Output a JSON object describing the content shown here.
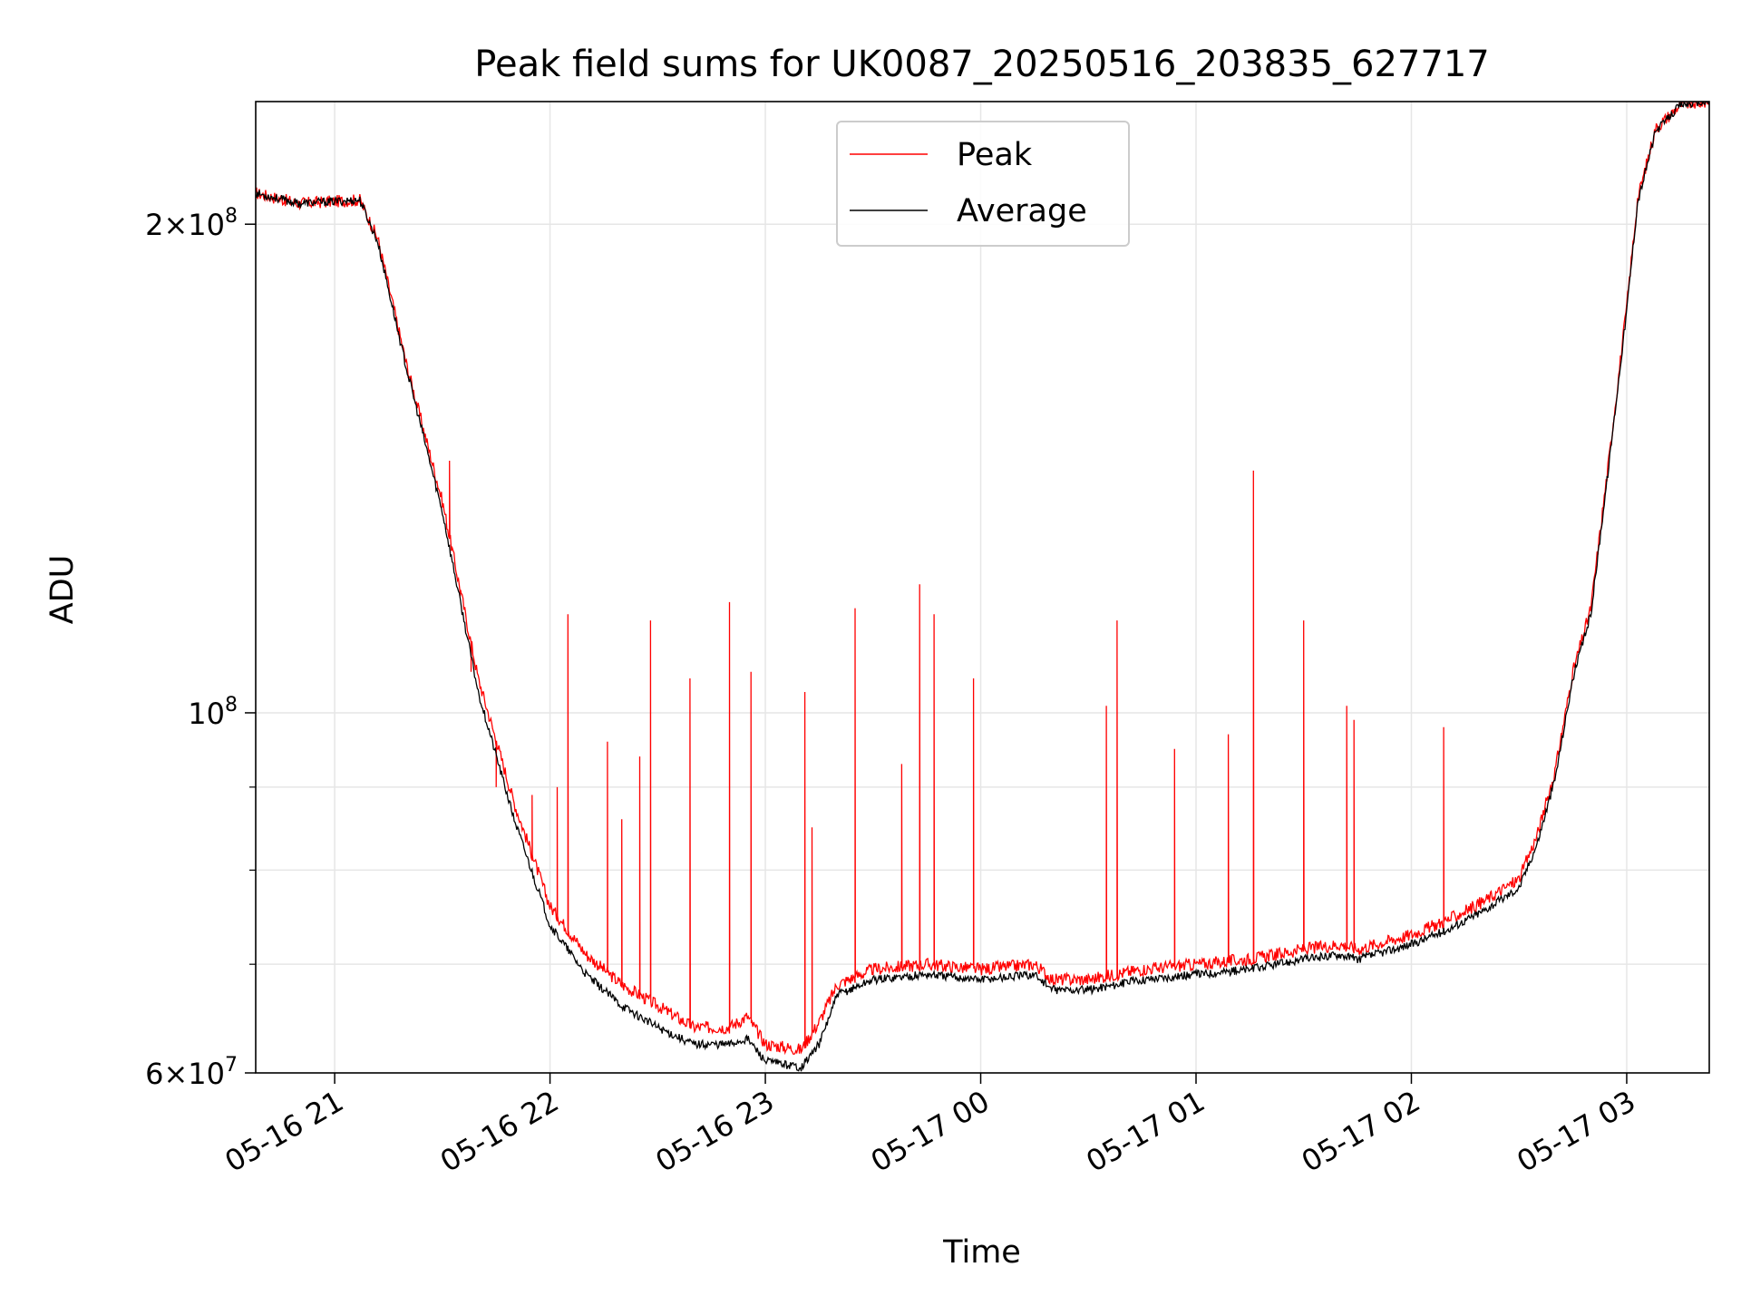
{
  "chart_data": {
    "type": "line",
    "title": "Peak field sums for UK0087_20250516_203835_627717",
    "xlabel": "Time",
    "ylabel": "ADU",
    "yscale": "log",
    "ylim": [
      60000000,
      238000000
    ],
    "xlim": [
      "2025-05-16T20:38",
      "2025-05-17T03:23"
    ],
    "grid": true,
    "legend_position": "top-center",
    "x_ticks": [
      {
        "t": "2025-05-16T21:00",
        "label": "05-16 21"
      },
      {
        "t": "2025-05-16T22:00",
        "label": "05-16 22"
      },
      {
        "t": "2025-05-16T23:00",
        "label": "05-16 23"
      },
      {
        "t": "2025-05-17T00:00",
        "label": "05-17 00"
      },
      {
        "t": "2025-05-17T01:00",
        "label": "05-17 01"
      },
      {
        "t": "2025-05-17T02:00",
        "label": "05-17 02"
      },
      {
        "t": "2025-05-17T03:00",
        "label": "05-17 03"
      }
    ],
    "y_ticks": [
      {
        "v": 60000000,
        "mantissa": "6",
        "exp": "7"
      },
      {
        "v": 100000000,
        "mantissa": "",
        "exp": "8"
      },
      {
        "v": 200000000,
        "mantissa": "2",
        "exp": "8"
      }
    ],
    "y_minor_ticks": [
      70000000,
      80000000,
      90000000
    ],
    "series": [
      {
        "name": "Peak",
        "color": "#ff0000",
        "points": [
          [
            "2025-05-16T20:38",
            209000000
          ],
          [
            "2025-05-16T20:50",
            206000000
          ],
          [
            "2025-05-16T21:07",
            207000000
          ],
          [
            "2025-05-16T21:12",
            196000000
          ],
          [
            "2025-05-16T21:20",
            164000000
          ],
          [
            "2025-05-16T21:30",
            135000000
          ],
          [
            "2025-05-16T21:40",
            105000000
          ],
          [
            "2025-05-16T21:50",
            88000000
          ],
          [
            "2025-05-16T22:00",
            76000000
          ],
          [
            "2025-05-16T22:10",
            71000000
          ],
          [
            "2025-05-16T22:20",
            68000000
          ],
          [
            "2025-05-16T22:30",
            66000000
          ],
          [
            "2025-05-16T22:40",
            64000000
          ],
          [
            "2025-05-16T22:50",
            64000000
          ],
          [
            "2025-05-16T22:55",
            65000000
          ],
          [
            "2025-05-16T23:00",
            62500000
          ],
          [
            "2025-05-16T23:10",
            62000000
          ],
          [
            "2025-05-16T23:15",
            64500000
          ],
          [
            "2025-05-16T23:20",
            68000000
          ],
          [
            "2025-05-16T23:30",
            69500000
          ],
          [
            "2025-05-16T23:45",
            70000000
          ],
          [
            "2025-05-17T00:00",
            69500000
          ],
          [
            "2025-05-17T00:15",
            70000000
          ],
          [
            "2025-05-17T00:20",
            68500000
          ],
          [
            "2025-05-17T00:30",
            68500000
          ],
          [
            "2025-05-17T00:45",
            69500000
          ],
          [
            "2025-05-17T01:00",
            70000000
          ],
          [
            "2025-05-17T01:15",
            70500000
          ],
          [
            "2025-05-17T01:30",
            71500000
          ],
          [
            "2025-05-17T01:40",
            72000000
          ],
          [
            "2025-05-17T01:45",
            71500000
          ],
          [
            "2025-05-17T02:00",
            73000000
          ],
          [
            "2025-05-17T02:10",
            74500000
          ],
          [
            "2025-05-17T02:20",
            76500000
          ],
          [
            "2025-05-17T02:30",
            79000000
          ],
          [
            "2025-05-17T02:35",
            84000000
          ],
          [
            "2025-05-17T02:40",
            92000000
          ],
          [
            "2025-05-17T02:45",
            106000000
          ],
          [
            "2025-05-17T02:50",
            116000000
          ],
          [
            "2025-05-17T02:55",
            143000000
          ],
          [
            "2025-05-17T03:00",
            178000000
          ],
          [
            "2025-05-17T03:03",
            207000000
          ],
          [
            "2025-05-17T03:08",
            229000000
          ],
          [
            "2025-05-17T03:15",
            237000000
          ],
          [
            "2025-05-17T03:23",
            238000000
          ]
        ],
        "spikes": [
          [
            "2025-05-16T21:32",
            143000000
          ],
          [
            "2025-05-16T21:35",
            118000000
          ],
          [
            "2025-05-16T21:38",
            106000000
          ],
          [
            "2025-05-16T21:45",
            90000000
          ],
          [
            "2025-05-16T21:55",
            89000000
          ],
          [
            "2025-05-16T22:02",
            90000000
          ],
          [
            "2025-05-16T22:05",
            115000000
          ],
          [
            "2025-05-16T22:16",
            96000000
          ],
          [
            "2025-05-16T22:20",
            86000000
          ],
          [
            "2025-05-16T22:25",
            94000000
          ],
          [
            "2025-05-16T22:28",
            114000000
          ],
          [
            "2025-05-16T22:39",
            105000000
          ],
          [
            "2025-05-16T22:50",
            117000000
          ],
          [
            "2025-05-16T22:56",
            106000000
          ],
          [
            "2025-05-16T23:11",
            103000000
          ],
          [
            "2025-05-16T23:13",
            85000000
          ],
          [
            "2025-05-16T23:25",
            116000000
          ],
          [
            "2025-05-16T23:38",
            93000000
          ],
          [
            "2025-05-16T23:43",
            120000000
          ],
          [
            "2025-05-16T23:47",
            115000000
          ],
          [
            "2025-05-16T23:58",
            105000000
          ],
          [
            "2025-05-17T00:35",
            101000000
          ],
          [
            "2025-05-17T00:38",
            114000000
          ],
          [
            "2025-05-17T00:54",
            95000000
          ],
          [
            "2025-05-17T01:09",
            97000000
          ],
          [
            "2025-05-17T01:16",
            141000000
          ],
          [
            "2025-05-17T01:30",
            114000000
          ],
          [
            "2025-05-17T01:42",
            101000000
          ],
          [
            "2025-05-17T01:44",
            99000000
          ],
          [
            "2025-05-17T02:09",
            98000000
          ]
        ]
      },
      {
        "name": "Average",
        "color": "#000000",
        "points": [
          [
            "2025-05-16T20:38",
            209000000
          ],
          [
            "2025-05-16T20:50",
            206000000
          ],
          [
            "2025-05-16T21:07",
            207000000
          ],
          [
            "2025-05-16T21:12",
            195000000
          ],
          [
            "2025-05-16T21:20",
            163000000
          ],
          [
            "2025-05-16T21:30",
            133000000
          ],
          [
            "2025-05-16T21:40",
            103000000
          ],
          [
            "2025-05-16T21:50",
            86000000
          ],
          [
            "2025-05-16T22:00",
            74000000
          ],
          [
            "2025-05-16T22:10",
            69000000
          ],
          [
            "2025-05-16T22:20",
            66000000
          ],
          [
            "2025-05-16T22:30",
            64000000
          ],
          [
            "2025-05-16T22:40",
            62500000
          ],
          [
            "2025-05-16T22:50",
            62500000
          ],
          [
            "2025-05-16T22:55",
            63000000
          ],
          [
            "2025-05-16T23:00",
            61000000
          ],
          [
            "2025-05-16T23:10",
            60500000
          ],
          [
            "2025-05-16T23:15",
            62500000
          ],
          [
            "2025-05-16T23:20",
            67000000
          ],
          [
            "2025-05-16T23:30",
            68500000
          ],
          [
            "2025-05-16T23:45",
            69000000
          ],
          [
            "2025-05-17T00:00",
            68500000
          ],
          [
            "2025-05-17T00:15",
            69000000
          ],
          [
            "2025-05-17T00:20",
            67500000
          ],
          [
            "2025-05-17T00:30",
            67500000
          ],
          [
            "2025-05-17T00:45",
            68500000
          ],
          [
            "2025-05-17T01:00",
            69000000
          ],
          [
            "2025-05-17T01:15",
            69500000
          ],
          [
            "2025-05-17T01:30",
            70500000
          ],
          [
            "2025-05-17T01:40",
            71000000
          ],
          [
            "2025-05-17T01:45",
            70500000
          ],
          [
            "2025-05-17T02:00",
            72000000
          ],
          [
            "2025-05-17T02:10",
            73500000
          ],
          [
            "2025-05-17T02:20",
            75500000
          ],
          [
            "2025-05-17T02:30",
            78000000
          ],
          [
            "2025-05-17T02:35",
            83000000
          ],
          [
            "2025-05-17T02:40",
            91000000
          ],
          [
            "2025-05-17T02:45",
            105000000
          ],
          [
            "2025-05-17T02:50",
            115000000
          ],
          [
            "2025-05-17T02:55",
            142000000
          ],
          [
            "2025-05-17T03:00",
            177000000
          ],
          [
            "2025-05-17T03:03",
            206000000
          ],
          [
            "2025-05-17T03:08",
            228000000
          ],
          [
            "2025-05-17T03:15",
            237000000
          ],
          [
            "2025-05-17T03:23",
            238000000
          ]
        ]
      }
    ]
  }
}
